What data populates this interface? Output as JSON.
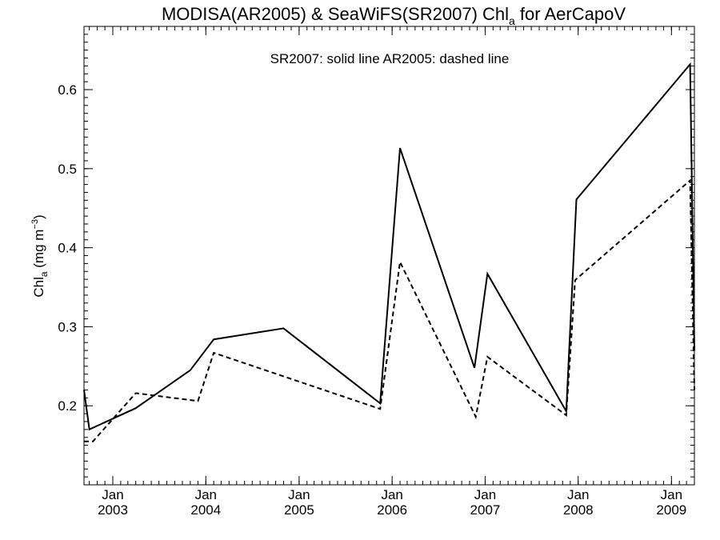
{
  "chart_data": {
    "type": "line",
    "title": {
      "prefix": "MODISA(AR2005) & SeaWiFS(SR2007)  Chl",
      "sub": "a",
      "suffix": " for AerCapoV"
    },
    "annotation": "SR2007: solid line   AR2005: dashed line",
    "ylabel": {
      "base": "Chl",
      "sub": "a",
      "unit": " (mg m",
      "sup": "−3",
      "close": ")"
    },
    "ylim": [
      0.1,
      0.68
    ],
    "yticks": [
      0.2,
      0.3,
      0.4,
      0.5,
      0.6
    ],
    "ytick_labels": [
      "0.2",
      "0.3",
      "0.4",
      "0.5",
      "0.6"
    ],
    "xlim": [
      "2002-09-10",
      "2009-04-01"
    ],
    "xticks": [
      "2003-01-01",
      "2004-01-01",
      "2005-01-01",
      "2006-01-01",
      "2007-01-01",
      "2008-01-01",
      "2009-01-01"
    ],
    "xtick_labels": [
      {
        "month": "Jan",
        "year": "2003"
      },
      {
        "month": "Jan",
        "year": "2004"
      },
      {
        "month": "Jan",
        "year": "2005"
      },
      {
        "month": "Jan",
        "year": "2006"
      },
      {
        "month": "Jan",
        "year": "2007"
      },
      {
        "month": "Jan",
        "year": "2008"
      },
      {
        "month": "Jan",
        "year": "2009"
      }
    ],
    "grid": false,
    "series": [
      {
        "name": "SR2007",
        "style": "solid",
        "color": "#000000",
        "points": [
          [
            "2002-09-10",
            0.22
          ],
          [
            "2002-10-01",
            0.17
          ],
          [
            "2003-04-01",
            0.197
          ],
          [
            "2003-11-01",
            0.245
          ],
          [
            "2004-02-01",
            0.284
          ],
          [
            "2004-11-01",
            0.298
          ],
          [
            "2005-11-15",
            0.203
          ],
          [
            "2006-02-01",
            0.526
          ],
          [
            "2006-11-20",
            0.248
          ],
          [
            "2007-01-10",
            0.367
          ],
          [
            "2007-11-15",
            0.193
          ],
          [
            "2007-12-25",
            0.461
          ],
          [
            "2009-03-15",
            0.632
          ],
          [
            "2009-04-01",
            0.27
          ]
        ]
      },
      {
        "name": "AR2005",
        "style": "dashed",
        "color": "#000000",
        "points": [
          [
            "2002-09-10",
            0.155
          ],
          [
            "2002-10-15",
            0.155
          ],
          [
            "2003-04-01",
            0.216
          ],
          [
            "2003-12-01",
            0.206
          ],
          [
            "2004-02-01",
            0.267
          ],
          [
            "2005-11-15",
            0.196
          ],
          [
            "2006-02-01",
            0.382
          ],
          [
            "2006-11-25",
            0.186
          ],
          [
            "2007-01-10",
            0.262
          ],
          [
            "2007-11-15",
            0.188
          ],
          [
            "2007-12-20",
            0.359
          ],
          [
            "2009-03-15",
            0.485
          ],
          [
            "2009-04-01",
            0.22
          ]
        ]
      }
    ]
  }
}
